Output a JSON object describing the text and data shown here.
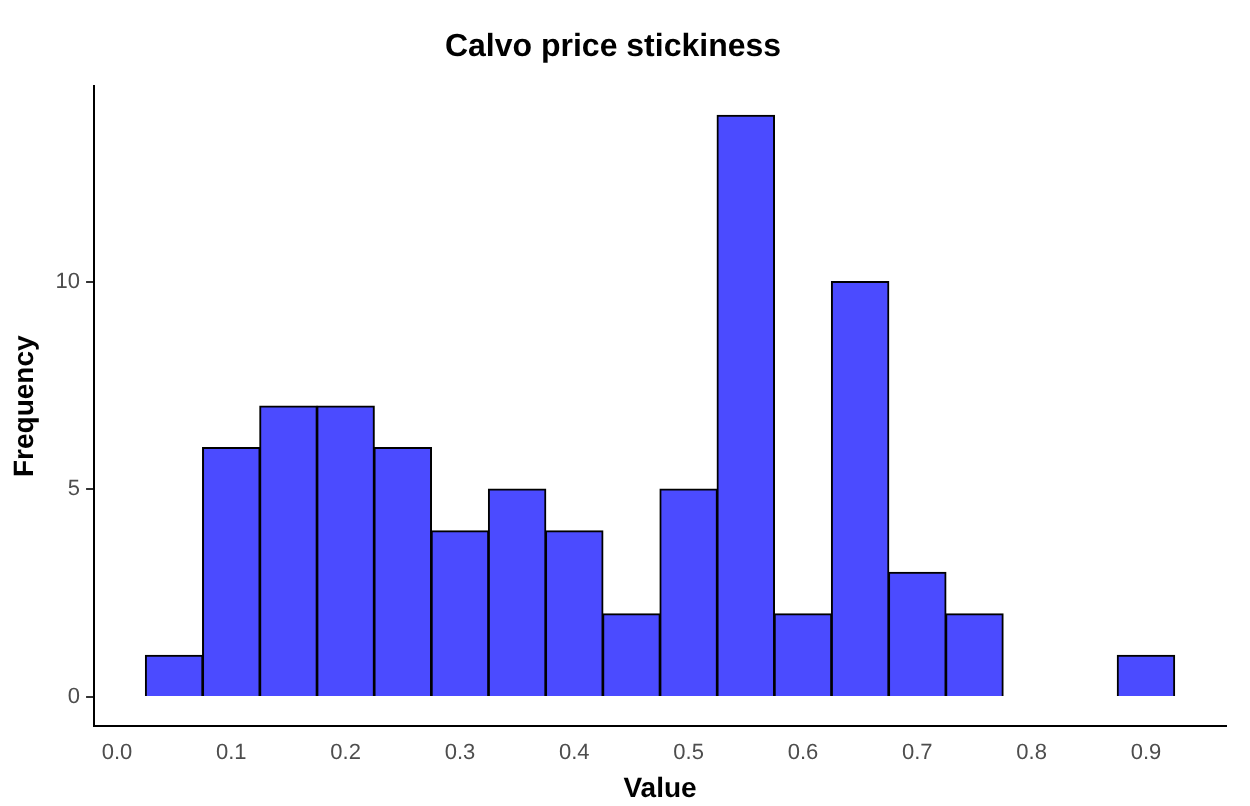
{
  "chart_data": {
    "type": "histogram",
    "title": "Calvo price stickiness",
    "xlabel": "Value",
    "ylabel": "Frequency",
    "bins": [
      0.025,
      0.075,
      0.125,
      0.175,
      0.225,
      0.275,
      0.325,
      0.375,
      0.425,
      0.475,
      0.525,
      0.575,
      0.625,
      0.675,
      0.725,
      0.775,
      0.825,
      0.875,
      0.925
    ],
    "values": [
      1,
      6,
      7,
      7,
      6,
      4,
      5,
      4,
      2,
      5,
      14,
      2,
      10,
      3,
      2,
      0,
      0,
      1
    ],
    "color": "#4b4bff",
    "xlim": [
      -0.02,
      0.97
    ],
    "xticks": [
      {
        "value": 0,
        "label": "0.0"
      },
      0.1,
      0.2,
      0.3,
      0.4,
      0.5,
      0.6,
      0.7,
      0.8,
      0.9
    ],
    "ylim": [
      -0.7,
      14.7
    ],
    "yticks": [
      0,
      5,
      10
    ],
    "grid": false,
    "legend": false
  }
}
